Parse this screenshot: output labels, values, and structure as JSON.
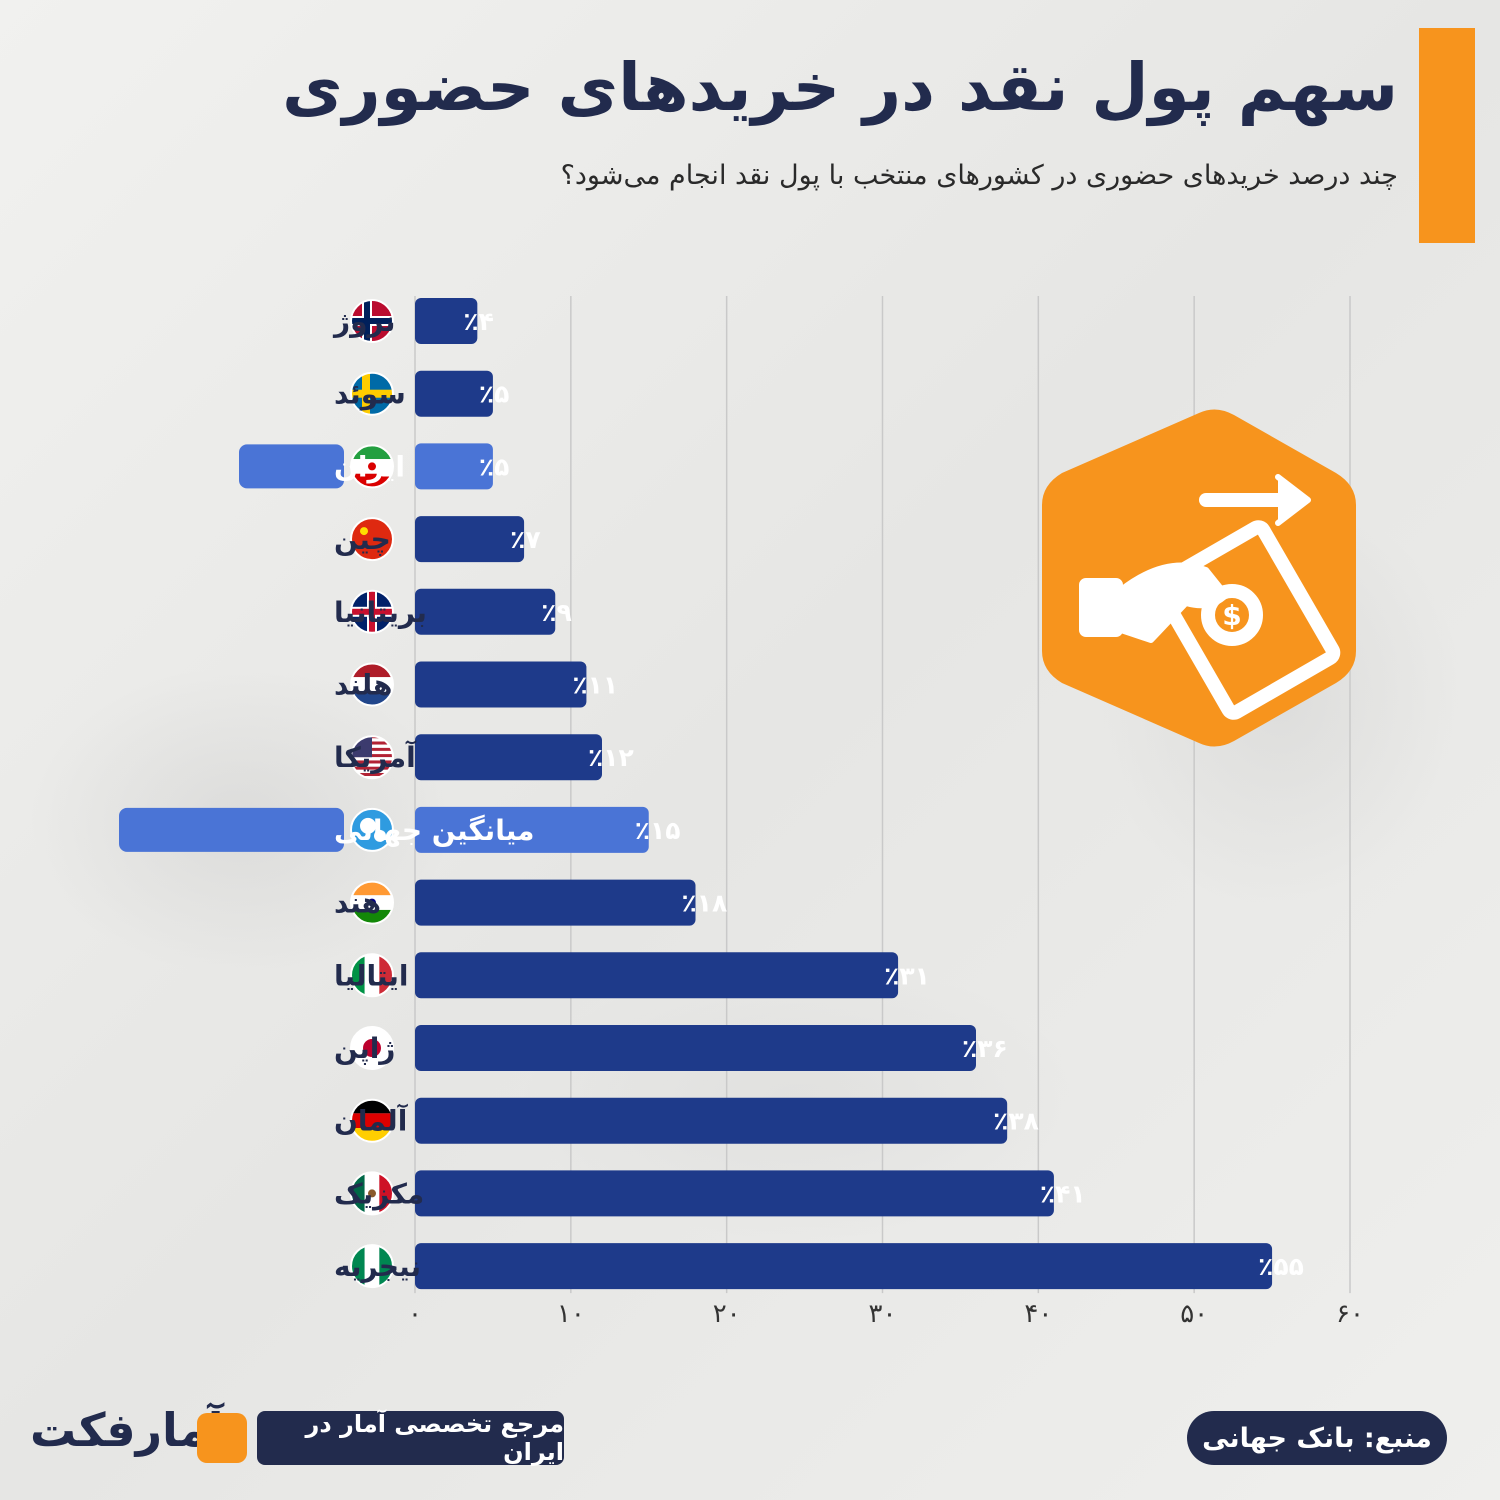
{
  "title": "سهم پول نقد در خریدهای حضوری",
  "subtitle": "چند درصد خریدهای حضوری در کشورهای منتخب با پول نقد انجام می‌شود؟",
  "colors": {
    "bar": "#1e3a8a",
    "highlight_bar": "#4a74d6",
    "accent": "#f7941d",
    "navy": "#222b4d"
  },
  "chart_data": {
    "type": "bar",
    "orientation": "horizontal",
    "title": "سهم پول نقد در خریدهای حضوری",
    "subtitle": "چند درصد خریدهای حضوری در کشورهای منتخب با پول نقد انجام می‌شود؟",
    "xlim": [
      0,
      60
    ],
    "x_ticks": [
      0,
      10,
      20,
      30,
      40,
      50,
      60
    ],
    "x_tick_labels": [
      "۰",
      "۱۰",
      "۲۰",
      "۳۰",
      "۴۰",
      "۵۰",
      "۶۰"
    ],
    "grid": true,
    "categories": [
      "نروژ",
      "سوئد",
      "ایران",
      "چین",
      "بریتانیا",
      "هلند",
      "آمریکا",
      "میانگین جهانی",
      "هند",
      "ایتالیا",
      "ژاپن",
      "آلمان",
      "مکزیک",
      "نیجریه"
    ],
    "values": [
      4,
      5,
      5,
      7,
      9,
      11,
      12,
      15,
      18,
      31,
      36,
      38,
      41,
      55
    ],
    "data_labels": [
      "٪۴",
      "٪۵",
      "٪۵",
      "٪۷",
      "٪۹",
      "٪۱۱",
      "٪۱۲",
      "٪۱۵",
      "٪۱۸",
      "٪۳۱",
      "٪۳۶",
      "٪۳۸",
      "٪۴۱",
      "٪۵۵"
    ],
    "highlighted": [
      "ایران",
      "میانگین جهانی"
    ],
    "flag_icons": [
      "norway-flag",
      "sweden-flag",
      "iran-flag",
      "china-flag",
      "uk-flag",
      "netherlands-flag",
      "usa-flag",
      "globe-icon",
      "india-flag",
      "italy-flag",
      "japan-flag",
      "germany-flag",
      "mexico-flag",
      "nigeria-flag"
    ]
  },
  "badge_icon": "hand-cash-icon",
  "footer": {
    "logo": "آمارفکت",
    "tagline": "مرجع تخصصی آمار در ایران",
    "source": "منبع: بانک جهانی"
  }
}
